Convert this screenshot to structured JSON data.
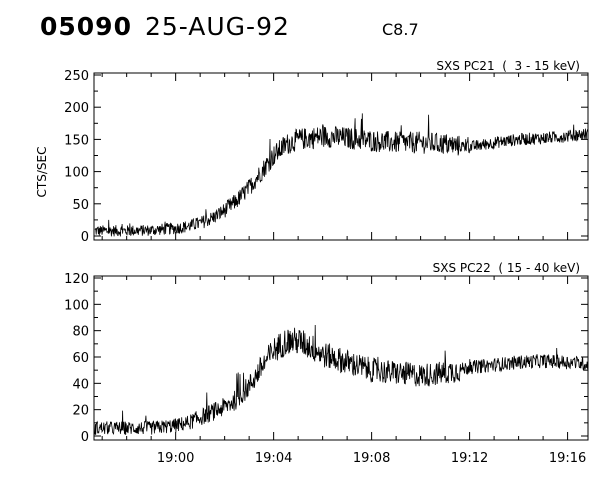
{
  "header": {
    "event_id": "05090",
    "date": "25-AUG-92",
    "flare_class": "C8.7"
  },
  "chart_data": [
    {
      "type": "line",
      "title": "SXS PC21  (  3 - 15 keV)",
      "ylabel": "CTS/SEC",
      "ylim": [
        0,
        250
      ],
      "yticks": [
        0,
        50,
        100,
        150,
        200,
        250
      ],
      "xlim_minutes": [
        "18:56:40",
        "19:16:50"
      ],
      "grid": false,
      "series": [
        {
          "x": [
            "18:57:00",
            "18:58:00",
            "18:59:00",
            "19:00:00",
            "19:00:30",
            "19:01:00",
            "19:01:30",
            "19:02:00",
            "19:02:30",
            "19:03:00",
            "19:03:30",
            "19:04:00",
            "19:04:30",
            "19:05:00",
            "19:05:30",
            "19:06:00",
            "19:07:00",
            "19:08:00",
            "19:09:00",
            "19:10:00",
            "19:11:00",
            "19:11:30",
            "19:12:00",
            "19:13:00",
            "19:14:00",
            "19:15:00",
            "19:16:00",
            "19:16:40"
          ],
          "values": [
            8,
            8,
            9,
            12,
            15,
            20,
            28,
            40,
            55,
            75,
            100,
            125,
            142,
            150,
            152,
            155,
            152,
            148,
            145,
            145,
            143,
            140,
            138,
            145,
            150,
            152,
            155,
            158
          ]
        }
      ]
    },
    {
      "type": "line",
      "title": "SXS PC22  ( 15 - 40 keV)",
      "ylabel": "",
      "ylim": [
        0,
        120
      ],
      "yticks": [
        0,
        20,
        40,
        60,
        80,
        100,
        120
      ],
      "xlabel": "",
      "xticks": [
        "19:00",
        "19:04",
        "19:08",
        "19:12",
        "19:16"
      ],
      "xlim_minutes": [
        "18:56:40",
        "19:16:50"
      ],
      "grid": false,
      "series": [
        {
          "x": [
            "18:57:00",
            "18:58:00",
            "18:59:00",
            "19:00:00",
            "19:00:30",
            "19:01:00",
            "19:01:30",
            "19:02:00",
            "19:02:30",
            "19:03:00",
            "19:03:30",
            "19:04:00",
            "19:04:30",
            "19:05:00",
            "19:05:30",
            "19:06:00",
            "19:07:00",
            "19:08:00",
            "19:09:00",
            "19:10:00",
            "19:11:00",
            "19:11:30",
            "19:12:00",
            "19:13:00",
            "19:14:00",
            "19:15:00",
            "19:16:00",
            "19:16:40"
          ],
          "values": [
            6,
            6,
            6,
            8,
            10,
            14,
            18,
            22,
            28,
            38,
            52,
            65,
            72,
            72,
            68,
            62,
            56,
            50,
            48,
            46,
            48,
            50,
            52,
            54,
            56,
            57,
            56,
            55
          ]
        }
      ]
    }
  ]
}
